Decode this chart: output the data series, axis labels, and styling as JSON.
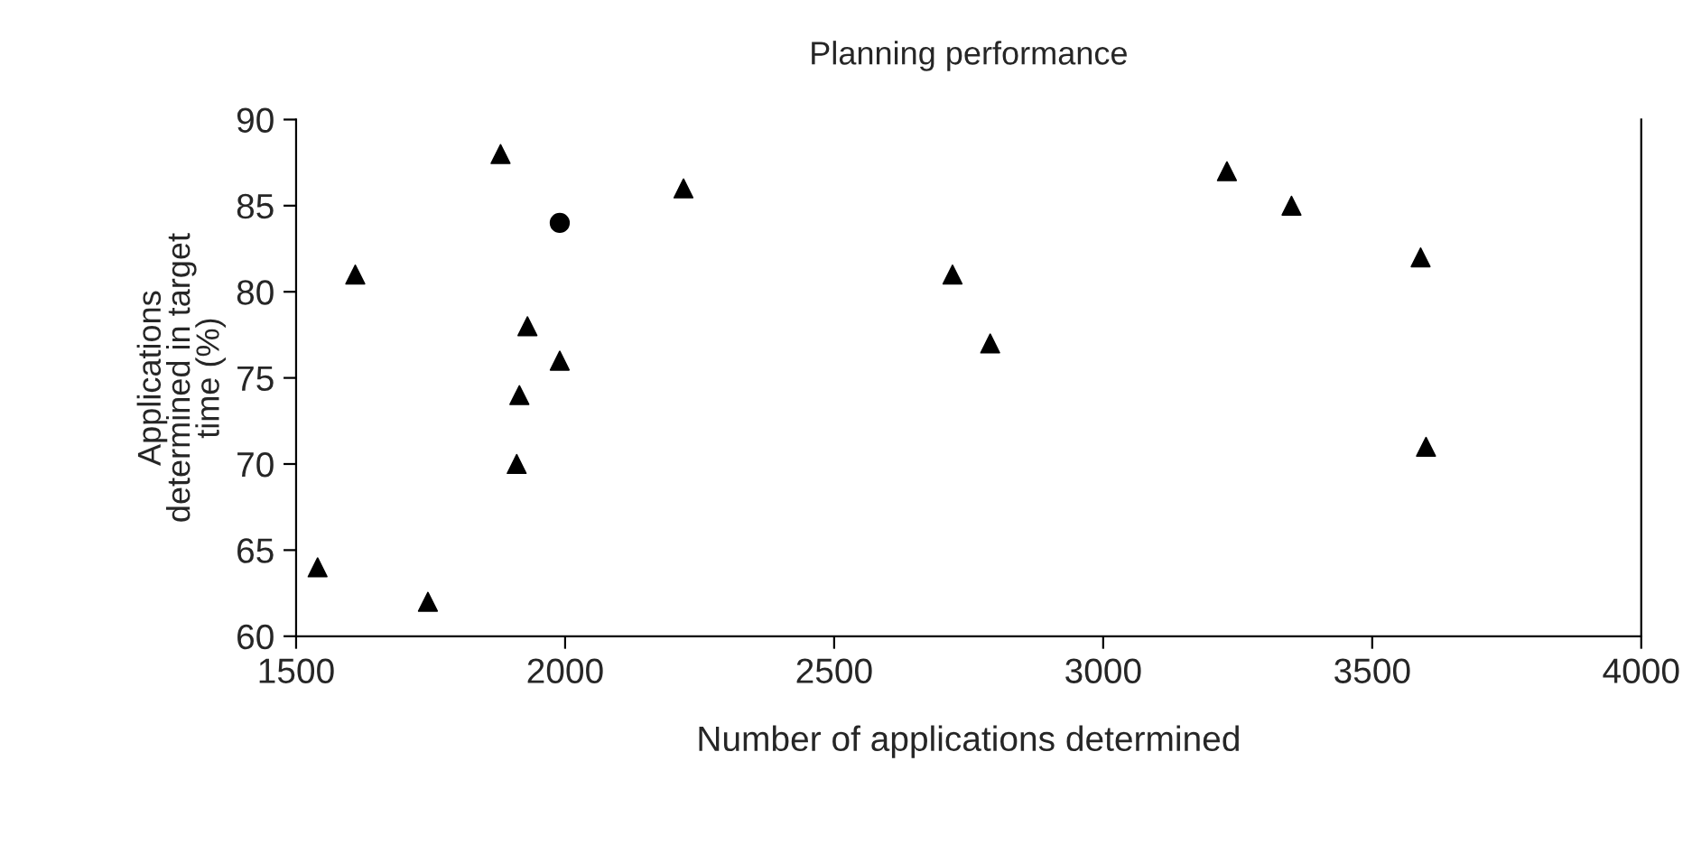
{
  "chart_data": {
    "type": "scatter",
    "title": "Planning performance",
    "xlabel": "Number of applications determined",
    "ylabel": "Applications\ndetermined in target\ntime (%)",
    "xlim": [
      1500,
      4000
    ],
    "xticks": [
      1500,
      2000,
      2500,
      3000,
      3500,
      4000
    ],
    "ylim": [
      60,
      90
    ],
    "yticks": [
      60,
      65,
      70,
      75,
      80,
      85,
      90
    ],
    "grid": false,
    "legend": false,
    "series": [
      {
        "color": "#000000",
        "marker": "triangle",
        "x": [
          1880,
          2220,
          1610,
          1930,
          1990,
          1915,
          1910,
          1540,
          1745,
          3230,
          3350,
          3590,
          2720,
          2790,
          3600
        ],
        "values": [
          88,
          86,
          81,
          78,
          76,
          74,
          70,
          64,
          62,
          87,
          85,
          82,
          81,
          77,
          71
        ]
      },
      {
        "color": "#000000",
        "marker": "circle",
        "x": [
          1990
        ],
        "values": [
          84
        ]
      }
    ]
  }
}
